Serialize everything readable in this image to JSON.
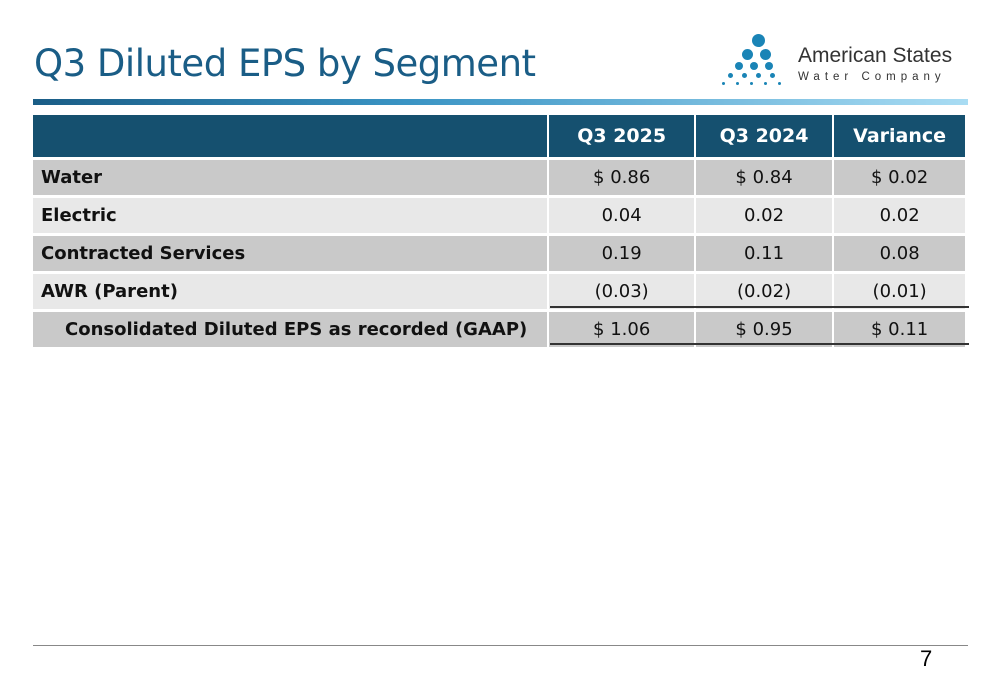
{
  "title": "Q3 Diluted EPS by Segment",
  "logo": {
    "name": "American States",
    "subtitle": "Water Company"
  },
  "table": {
    "headers": [
      "",
      "Q3 2025",
      "Q3 2024",
      "Variance"
    ],
    "rows": [
      {
        "label": "Water",
        "values": [
          "$ 0.86",
          "$  0.84",
          "$ 0.02"
        ]
      },
      {
        "label": "Electric",
        "values": [
          "0.04",
          "0.02",
          "0.02"
        ]
      },
      {
        "label": "Contracted Services",
        "values": [
          "0.19",
          "0.11",
          "0.08"
        ]
      },
      {
        "label": "AWR (Parent)",
        "values": [
          "(0.03)",
          "(0.02)",
          "(0.01)"
        ]
      },
      {
        "label": "Consolidated Diluted EPS as recorded (GAAP)",
        "values": [
          "$ 1.06",
          "$  0.95",
          "$ 0.11"
        ]
      }
    ]
  },
  "page_number": "7",
  "colors": {
    "title": "#1a5d86",
    "header": "#15506f",
    "logo": "#1a84b6"
  }
}
